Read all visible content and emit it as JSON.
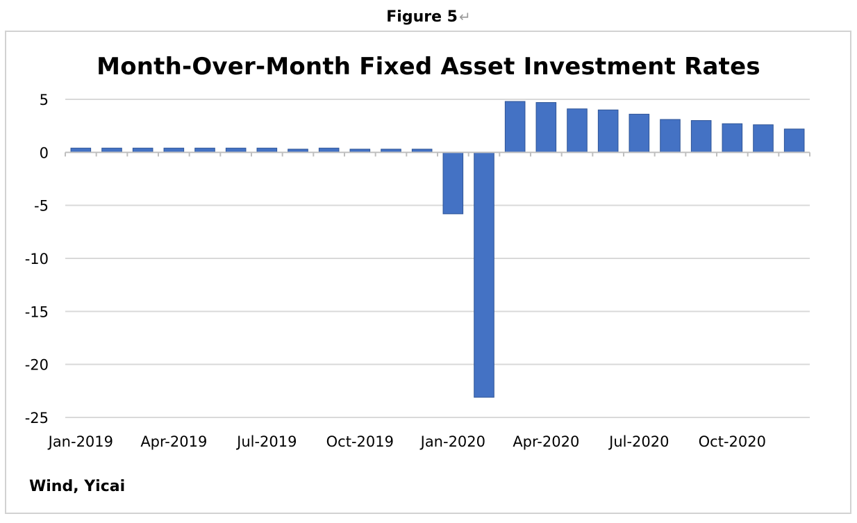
{
  "figure_label": "Figure 5",
  "figure_return_mark": "↵",
  "source": "Wind, Yicai",
  "chart_data": {
    "type": "bar",
    "title": "Month-Over-Month Fixed  Asset Investment Rates",
    "xlabel": "",
    "ylabel": "",
    "ylim": [
      -25,
      5
    ],
    "yticks": [
      5,
      0,
      -5,
      -10,
      -15,
      -20,
      -25
    ],
    "grid": true,
    "legend": "none",
    "bar_color": "#4472c4",
    "categories": [
      "Jan-2019",
      "Feb-2019",
      "Mar-2019",
      "Apr-2019",
      "May-2019",
      "Jun-2019",
      "Jul-2019",
      "Aug-2019",
      "Sep-2019",
      "Oct-2019",
      "Nov-2019",
      "Dec-2019",
      "Jan-2020",
      "Feb-2020",
      "Mar-2020",
      "Apr-2020",
      "May-2020",
      "Jun-2020",
      "Jul-2020",
      "Aug-2020",
      "Sep-2020",
      "Oct-2020",
      "Nov-2020",
      "Dec-2020"
    ],
    "xtick_labels": [
      "Jan-2019",
      "Apr-2019",
      "Jul-2019",
      "Oct-2019",
      "Jan-2020",
      "Apr-2020",
      "Jul-2020",
      "Oct-2020"
    ],
    "values": [
      0.4,
      0.4,
      0.4,
      0.4,
      0.4,
      0.4,
      0.4,
      0.3,
      0.4,
      0.3,
      0.3,
      0.3,
      -5.8,
      -23.1,
      4.8,
      4.7,
      4.1,
      4.0,
      3.6,
      3.1,
      3.0,
      2.7,
      2.6,
      2.2
    ]
  }
}
